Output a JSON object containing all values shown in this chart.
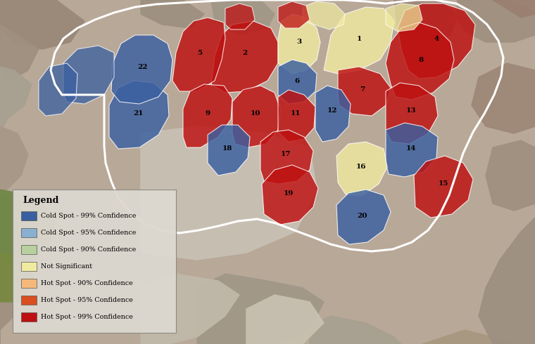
{
  "figsize": [
    7.6,
    4.9
  ],
  "dpi": 100,
  "legend": {
    "title": "Legend",
    "items": [
      {
        "label": "Cold Spot - 99% Confidence",
        "color": "#3a5fa0"
      },
      {
        "label": "Cold Spot - 95% Confidence",
        "color": "#8aafd0"
      },
      {
        "label": "Cold Spot - 90% Confidence",
        "color": "#b8d0a0"
      },
      {
        "label": "Not Significant",
        "color": "#f0eaa0"
      },
      {
        "label": "Hot Spot - 90% Confidence",
        "color": "#f5b87a"
      },
      {
        "label": "Hot Spot - 95% Confidence",
        "color": "#d94f20"
      },
      {
        "label": "Hot Spot - 99% Confidence",
        "color": "#be1010"
      }
    ]
  },
  "colors": {
    "cold99": "#3a5fa0",
    "cold95": "#8aafd0",
    "cold90": "#b8d0a0",
    "ns": "#f0eaa0",
    "hot90": "#f5b87a",
    "hot95": "#d94f20",
    "hot99": "#be1010"
  }
}
